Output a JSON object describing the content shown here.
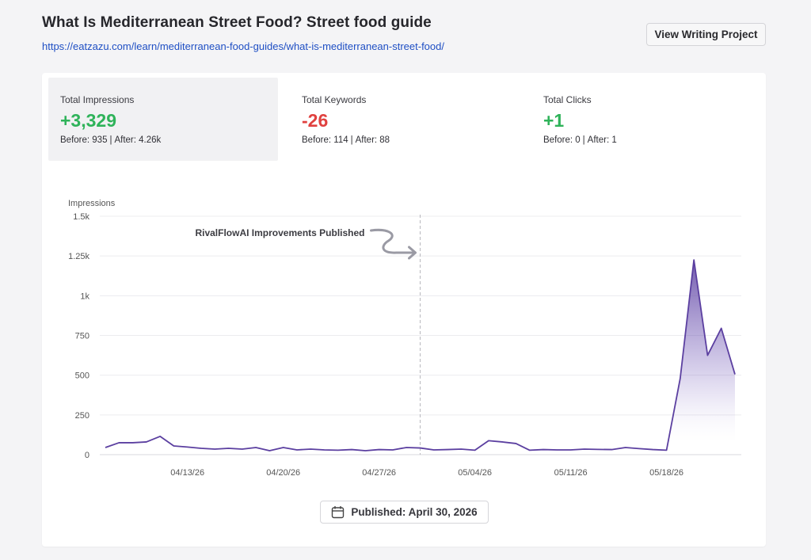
{
  "header": {
    "title": "What Is Mediterranean Street Food? Street food guide",
    "url": "https://eatzazu.com/learn/mediterranean-food-guides/what-is-mediterranean-street-food/",
    "view_button": "View Writing Project"
  },
  "metrics": [
    {
      "label": "Total Impressions",
      "value": "+3,329",
      "before": "Before: 935",
      "after": "After: 4.26k",
      "trend": "positive",
      "active": true
    },
    {
      "label": "Total Keywords",
      "value": "-26",
      "before": "Before: 114",
      "after": "After: 88",
      "trend": "negative",
      "active": false
    },
    {
      "label": "Total Clicks",
      "value": "+1",
      "before": "Before: 0",
      "after": "After: 1",
      "trend": "positive",
      "active": false
    }
  ],
  "metric_separator": "|",
  "colors": {
    "positive": "#2fb35a",
    "negative": "#e0413f",
    "series": "#5b3fa0",
    "link": "#1f4fc4"
  },
  "published_badge": {
    "icon": "calendar-icon",
    "label": "Published: April 30, 2026"
  },
  "chart_data": {
    "type": "area",
    "ylabel": "Impressions",
    "ylim": [
      0,
      1500
    ],
    "yticks": [
      0,
      250,
      500,
      750,
      1000,
      1250,
      1500
    ],
    "ytick_labels": [
      "0",
      "250",
      "500",
      "750",
      "1k",
      "1.25k",
      "1.5k"
    ],
    "x_start": "04/07/26",
    "xtick_labels": [
      "04/13/26",
      "04/20/26",
      "04/27/26",
      "05/04/26",
      "05/11/26",
      "05/18/26"
    ],
    "grid": true,
    "annotation": {
      "text": "RivalFlowAI Improvements Published",
      "date": "04/30/26"
    },
    "series": [
      {
        "values": [
          45,
          75,
          75,
          80,
          115,
          55,
          48,
          40,
          35,
          40,
          35,
          45,
          25,
          45,
          30,
          35,
          30,
          28,
          32,
          25,
          32,
          30,
          45,
          42,
          30,
          32,
          35,
          28,
          88,
          80,
          70,
          28,
          32,
          30,
          30,
          35,
          33,
          32,
          45,
          38,
          32,
          28,
          480,
          1225,
          625,
          795,
          505
        ]
      }
    ]
  }
}
